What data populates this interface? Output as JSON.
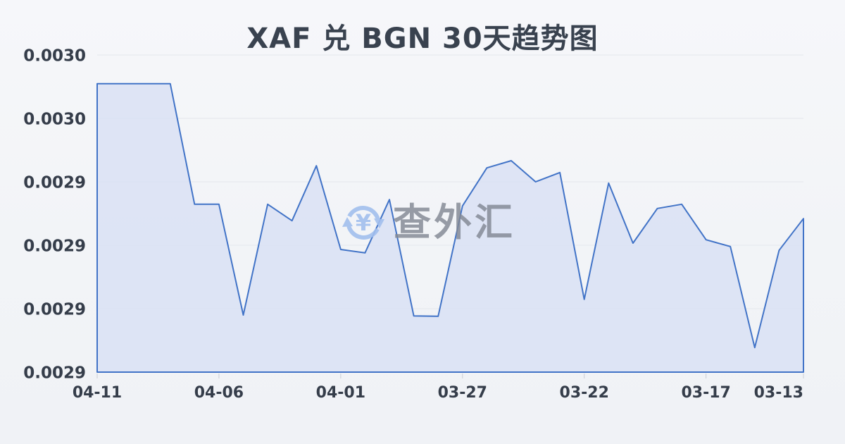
{
  "page": {
    "title": "XAF 兑 BGN 30天趋势图"
  },
  "watermark": {
    "icon": "currency-exchange-circular-arrows-icon",
    "symbol": "¥",
    "text": "查外汇"
  },
  "colors": {
    "line": "#4173c7",
    "fill": "#d9e1f5",
    "grid": "#e4e7ec",
    "axis_text": "#353d4a",
    "tick": "#c9cdd4",
    "title_text": "#39424f",
    "watermark_text": "#828894",
    "watermark_icon": "#a2bfee",
    "background": "#f2f4f7"
  },
  "chart_data": {
    "type": "area",
    "title": "XAF 兑 BGN 30天趋势图",
    "xlabel": "",
    "ylabel": "",
    "grid": true,
    "legend": false,
    "x_order_note": "dates run newest (left) to oldest (right)",
    "x": [
      "04-11",
      "04-10",
      "04-09",
      "04-08",
      "04-07",
      "04-06",
      "04-05",
      "04-04",
      "04-03",
      "04-02",
      "04-01",
      "03-31",
      "03-30",
      "03-29",
      "03-28",
      "03-27",
      "03-26",
      "03-25",
      "03-24",
      "03-23",
      "03-22",
      "03-21",
      "03-20",
      "03-19",
      "03-18",
      "03-17",
      "03-16",
      "03-15",
      "03-14",
      "03-13"
    ],
    "values": [
      0.0029582,
      0.0029582,
      0.0029582,
      0.0029582,
      0.0029297,
      0.0029297,
      0.0029035,
      0.0029297,
      0.0029258,
      0.0029388,
      0.002919,
      0.0029182,
      0.0029308,
      0.0029033,
      0.0029032,
      0.0029293,
      0.0029383,
      0.00294,
      0.002935,
      0.0029372,
      0.0029072,
      0.0029347,
      0.0029205,
      0.0029287,
      0.0029297,
      0.0029213,
      0.0029197,
      0.0028958,
      0.0029188,
      0.0029263
    ],
    "x_tick_labels": [
      "04-11",
      "04-06",
      "04-01",
      "03-27",
      "03-22",
      "03-17",
      "03-13"
    ],
    "x_tick_indices": [
      0,
      5,
      10,
      15,
      20,
      25,
      29
    ],
    "y_tick_labels": [
      "0.0030",
      "0.0030",
      "0.0029",
      "0.0029",
      "0.0029",
      "0.0029"
    ],
    "ylim": [
      0.00289,
      0.002965
    ]
  }
}
